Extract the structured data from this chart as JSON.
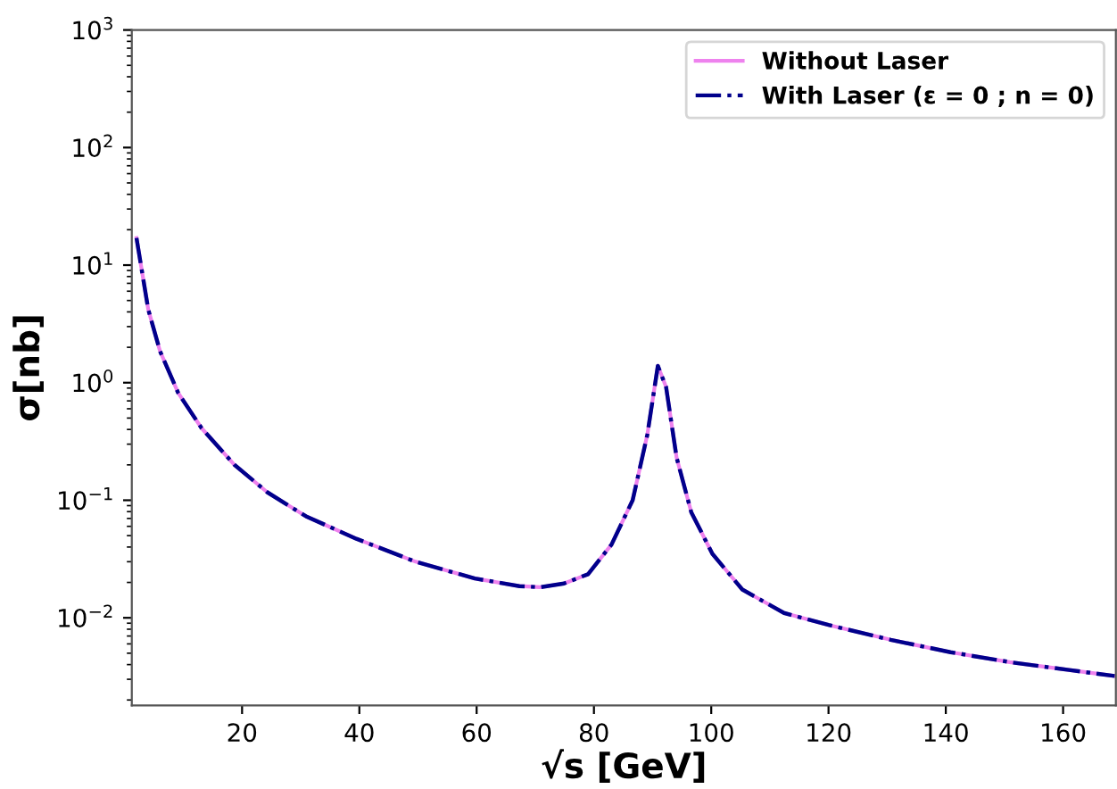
{
  "chart_data": {
    "type": "line",
    "xlabel": "√s [GeV]",
    "ylabel": "σ[nb]",
    "log": "y",
    "grid": false,
    "legend": "top right",
    "xlim": [
      1.2,
      169
    ],
    "ylim": [
      0.0018,
      1000
    ],
    "xticks": [
      20,
      40,
      60,
      80,
      100,
      120,
      140,
      160
    ],
    "yticks": [
      {
        "value": 0.01,
        "label": "10$^{−2}$"
      },
      {
        "value": 0.1,
        "label": "10$^{−1}$"
      },
      {
        "value": 1,
        "label": "10$^{0}$"
      },
      {
        "value": 10,
        "label": "10$^{1}$"
      },
      {
        "value": 100,
        "label": "10$^{2}$"
      },
      {
        "value": 1000,
        "label": "10$^{3}$"
      }
    ],
    "x": [
      2.0,
      4.0,
      6.0,
      9.1,
      13.1,
      18.7,
      24.3,
      30.9,
      39.5,
      49.6,
      59.7,
      67.3,
      70.8,
      74.9,
      79.0,
      83.0,
      86.6,
      89.1,
      90.9,
      92.3,
      94.1,
      96.6,
      100.2,
      105.3,
      112.4,
      120,
      130.6,
      140.8,
      150.9,
      161,
      168.8
    ],
    "series": [
      {
        "name": "Without Laser",
        "color": "#ee82ee",
        "line_style": "solid",
        "values": [
          17,
          4.2,
          1.86,
          0.82,
          0.41,
          0.2,
          0.117,
          0.073,
          0.047,
          0.03,
          0.0216,
          0.0186,
          0.0182,
          0.0196,
          0.0235,
          0.042,
          0.1,
          0.36,
          1.39,
          0.92,
          0.23,
          0.079,
          0.035,
          0.0174,
          0.011,
          0.0087,
          0.0065,
          0.0051,
          0.0042,
          0.0036,
          0.0032
        ]
      },
      {
        "name": "With Laser (ε = 0 ; n = 0)",
        "color": "#00008b",
        "line_style": "dashdot",
        "values": [
          17,
          4.2,
          1.86,
          0.82,
          0.41,
          0.2,
          0.117,
          0.073,
          0.047,
          0.03,
          0.0216,
          0.0186,
          0.0182,
          0.0196,
          0.0235,
          0.042,
          0.1,
          0.36,
          1.39,
          0.92,
          0.23,
          0.079,
          0.035,
          0.0174,
          0.011,
          0.0087,
          0.0065,
          0.0051,
          0.0042,
          0.0036,
          0.0032
        ]
      }
    ]
  }
}
